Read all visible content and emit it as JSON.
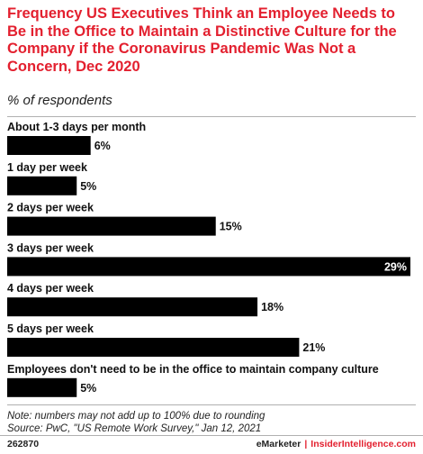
{
  "title": "Frequency US Executives Think an Employee Needs to Be in the Office to Maintain a Distinctive Culture for the Company if the Coronavirus Pandemic Was Not a Concern, Dec 2020",
  "subtitle": "% of respondents",
  "notes": {
    "line1": "Note: numbers may not add up to 100% due to rounding",
    "line2": "Source: PwC, \"US Remote Work Survey,\" Jan 12, 2021"
  },
  "footer": {
    "chart_id": "262870",
    "brand1": "eMarketer",
    "separator": "|",
    "brand2": "InsiderIntelligence.com"
  },
  "colors": {
    "title": "#e3202f",
    "bar": "#000000"
  },
  "chart_data": {
    "type": "bar",
    "orientation": "horizontal",
    "categories": [
      "About 1-3 days per month",
      "1 day per week",
      "2 days per week",
      "3 days per week",
      "4 days per week",
      "5 days per week",
      "Employees don't need to be in the office to maintain company culture"
    ],
    "values": [
      6,
      5,
      15,
      29,
      18,
      21,
      5
    ],
    "value_suffix": "%",
    "xlim": [
      0,
      29
    ],
    "grid": false,
    "legend": "none"
  }
}
